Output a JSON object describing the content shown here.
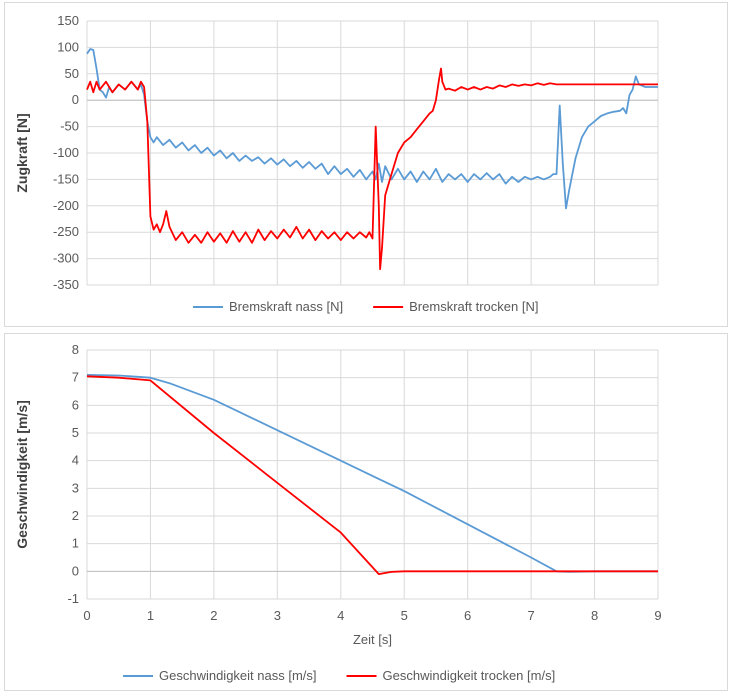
{
  "chart_data": [
    {
      "type": "line",
      "ylabel": "Zugkraft [N]",
      "xlabel": "",
      "xlim": [
        0,
        9
      ],
      "ylim": [
        -350,
        150
      ],
      "yticks": [
        150,
        100,
        50,
        0,
        -50,
        -100,
        -150,
        -200,
        -250,
        -300,
        -350
      ],
      "grid": true,
      "legend_position": "bottom",
      "series": [
        {
          "name": "Bremskraft nass [N]",
          "color": "#5b9bd5",
          "points": [
            [
              0,
              88
            ],
            [
              0.05,
              97
            ],
            [
              0.1,
              95
            ],
            [
              0.15,
              60
            ],
            [
              0.2,
              20
            ],
            [
              0.25,
              15
            ],
            [
              0.3,
              5
            ],
            [
              0.35,
              25
            ],
            [
              0.4,
              15
            ],
            [
              0.5,
              30
            ],
            [
              0.6,
              20
            ],
            [
              0.7,
              35
            ],
            [
              0.8,
              20
            ],
            [
              0.85,
              30
            ],
            [
              0.9,
              10
            ],
            [
              0.95,
              -40
            ],
            [
              1.0,
              -70
            ],
            [
              1.05,
              -80
            ],
            [
              1.1,
              -70
            ],
            [
              1.2,
              -85
            ],
            [
              1.3,
              -75
            ],
            [
              1.4,
              -90
            ],
            [
              1.5,
              -80
            ],
            [
              1.6,
              -95
            ],
            [
              1.7,
              -85
            ],
            [
              1.8,
              -100
            ],
            [
              1.9,
              -90
            ],
            [
              2.0,
              -105
            ],
            [
              2.1,
              -95
            ],
            [
              2.2,
              -110
            ],
            [
              2.3,
              -100
            ],
            [
              2.4,
              -115
            ],
            [
              2.5,
              -105
            ],
            [
              2.6,
              -115
            ],
            [
              2.7,
              -108
            ],
            [
              2.8,
              -120
            ],
            [
              2.9,
              -110
            ],
            [
              3.0,
              -122
            ],
            [
              3.1,
              -112
            ],
            [
              3.2,
              -125
            ],
            [
              3.3,
              -115
            ],
            [
              3.4,
              -128
            ],
            [
              3.5,
              -117
            ],
            [
              3.6,
              -130
            ],
            [
              3.7,
              -120
            ],
            [
              3.8,
              -140
            ],
            [
              3.9,
              -125
            ],
            [
              4.0,
              -140
            ],
            [
              4.1,
              -130
            ],
            [
              4.2,
              -145
            ],
            [
              4.3,
              -132
            ],
            [
              4.4,
              -150
            ],
            [
              4.5,
              -135
            ],
            [
              4.55,
              -150
            ],
            [
              4.6,
              -120
            ],
            [
              4.65,
              -155
            ],
            [
              4.7,
              -125
            ],
            [
              4.8,
              -150
            ],
            [
              4.9,
              -130
            ],
            [
              5.0,
              -150
            ],
            [
              5.1,
              -135
            ],
            [
              5.2,
              -155
            ],
            [
              5.3,
              -135
            ],
            [
              5.4,
              -150
            ],
            [
              5.5,
              -130
            ],
            [
              5.6,
              -155
            ],
            [
              5.7,
              -140
            ],
            [
              5.8,
              -150
            ],
            [
              5.9,
              -140
            ],
            [
              6.0,
              -155
            ],
            [
              6.1,
              -140
            ],
            [
              6.2,
              -150
            ],
            [
              6.3,
              -138
            ],
            [
              6.4,
              -150
            ],
            [
              6.5,
              -140
            ],
            [
              6.6,
              -158
            ],
            [
              6.7,
              -145
            ],
            [
              6.8,
              -155
            ],
            [
              6.9,
              -145
            ],
            [
              7.0,
              -150
            ],
            [
              7.1,
              -145
            ],
            [
              7.2,
              -150
            ],
            [
              7.3,
              -145
            ],
            [
              7.35,
              -140
            ],
            [
              7.4,
              -140
            ],
            [
              7.45,
              -10
            ],
            [
              7.5,
              -120
            ],
            [
              7.55,
              -205
            ],
            [
              7.6,
              -170
            ],
            [
              7.7,
              -110
            ],
            [
              7.8,
              -70
            ],
            [
              7.9,
              -50
            ],
            [
              8.0,
              -40
            ],
            [
              8.1,
              -30
            ],
            [
              8.2,
              -25
            ],
            [
              8.3,
              -22
            ],
            [
              8.4,
              -20
            ],
            [
              8.45,
              -15
            ],
            [
              8.5,
              -25
            ],
            [
              8.55,
              10
            ],
            [
              8.6,
              20
            ],
            [
              8.65,
              45
            ],
            [
              8.7,
              30
            ],
            [
              8.8,
              25
            ],
            [
              9.0,
              25
            ]
          ]
        },
        {
          "name": "Bremskraft trocken [N]",
          "color": "#ff0000",
          "points": [
            [
              0,
              20
            ],
            [
              0.05,
              35
            ],
            [
              0.1,
              15
            ],
            [
              0.15,
              35
            ],
            [
              0.2,
              20
            ],
            [
              0.3,
              35
            ],
            [
              0.4,
              15
            ],
            [
              0.5,
              30
            ],
            [
              0.6,
              20
            ],
            [
              0.7,
              35
            ],
            [
              0.8,
              20
            ],
            [
              0.85,
              35
            ],
            [
              0.9,
              25
            ],
            [
              0.95,
              -40
            ],
            [
              1.0,
              -220
            ],
            [
              1.05,
              -245
            ],
            [
              1.1,
              -235
            ],
            [
              1.15,
              -250
            ],
            [
              1.2,
              -235
            ],
            [
              1.25,
              -210
            ],
            [
              1.3,
              -240
            ],
            [
              1.4,
              -265
            ],
            [
              1.5,
              -250
            ],
            [
              1.6,
              -270
            ],
            [
              1.7,
              -255
            ],
            [
              1.8,
              -270
            ],
            [
              1.9,
              -250
            ],
            [
              2.0,
              -268
            ],
            [
              2.1,
              -252
            ],
            [
              2.2,
              -270
            ],
            [
              2.3,
              -248
            ],
            [
              2.4,
              -268
            ],
            [
              2.5,
              -250
            ],
            [
              2.6,
              -270
            ],
            [
              2.7,
              -245
            ],
            [
              2.8,
              -265
            ],
            [
              2.9,
              -248
            ],
            [
              3.0,
              -262
            ],
            [
              3.1,
              -245
            ],
            [
              3.2,
              -260
            ],
            [
              3.3,
              -240
            ],
            [
              3.4,
              -262
            ],
            [
              3.5,
              -245
            ],
            [
              3.6,
              -265
            ],
            [
              3.7,
              -248
            ],
            [
              3.8,
              -262
            ],
            [
              3.9,
              -250
            ],
            [
              4.0,
              -265
            ],
            [
              4.1,
              -250
            ],
            [
              4.2,
              -262
            ],
            [
              4.3,
              -250
            ],
            [
              4.4,
              -260
            ],
            [
              4.45,
              -250
            ],
            [
              4.5,
              -262
            ],
            [
              4.55,
              -50
            ],
            [
              4.6,
              -200
            ],
            [
              4.62,
              -320
            ],
            [
              4.65,
              -280
            ],
            [
              4.7,
              -180
            ],
            [
              4.8,
              -140
            ],
            [
              4.9,
              -100
            ],
            [
              5.0,
              -80
            ],
            [
              5.1,
              -70
            ],
            [
              5.2,
              -55
            ],
            [
              5.3,
              -40
            ],
            [
              5.4,
              -25
            ],
            [
              5.45,
              -20
            ],
            [
              5.5,
              0
            ],
            [
              5.55,
              40
            ],
            [
              5.58,
              60
            ],
            [
              5.6,
              35
            ],
            [
              5.65,
              20
            ],
            [
              5.7,
              22
            ],
            [
              5.8,
              18
            ],
            [
              5.9,
              25
            ],
            [
              6.0,
              20
            ],
            [
              6.1,
              25
            ],
            [
              6.2,
              20
            ],
            [
              6.3,
              25
            ],
            [
              6.4,
              22
            ],
            [
              6.5,
              28
            ],
            [
              6.6,
              25
            ],
            [
              6.7,
              30
            ],
            [
              6.8,
              27
            ],
            [
              6.9,
              30
            ],
            [
              7.0,
              28
            ],
            [
              7.1,
              32
            ],
            [
              7.2,
              29
            ],
            [
              7.3,
              32
            ],
            [
              7.4,
              30
            ],
            [
              7.5,
              30
            ],
            [
              8.0,
              30
            ],
            [
              9.0,
              30
            ]
          ]
        }
      ]
    },
    {
      "type": "line",
      "ylabel": "Geschwindigkeit [m/s]",
      "xlabel": "Zeit [s]",
      "xlim": [
        0,
        9
      ],
      "ylim": [
        -1,
        8
      ],
      "xticks": [
        0,
        1,
        2,
        3,
        4,
        5,
        6,
        7,
        8,
        9
      ],
      "yticks": [
        8,
        7,
        6,
        5,
        4,
        3,
        2,
        1,
        0,
        -1
      ],
      "grid": true,
      "legend_position": "bottom",
      "series": [
        {
          "name": "Geschwindigkeit nass [m/s]",
          "color": "#5b9bd5",
          "points": [
            [
              0,
              7.1
            ],
            [
              0.5,
              7.08
            ],
            [
              1.0,
              7.0
            ],
            [
              1.3,
              6.8
            ],
            [
              2.0,
              6.2
            ],
            [
              3.0,
              5.1
            ],
            [
              4.0,
              4.0
            ],
            [
              5.0,
              2.9
            ],
            [
              6.0,
              1.7
            ],
            [
              7.0,
              0.5
            ],
            [
              7.4,
              0.0
            ],
            [
              7.6,
              -0.02
            ],
            [
              8.0,
              0.0
            ],
            [
              9.0,
              0.0
            ]
          ]
        },
        {
          "name": "Geschwindigkeit trocken [m/s]",
          "color": "#ff0000",
          "points": [
            [
              0,
              7.05
            ],
            [
              0.5,
              7.0
            ],
            [
              1.0,
              6.9
            ],
            [
              2.0,
              5.0
            ],
            [
              3.0,
              3.2
            ],
            [
              4.0,
              1.4
            ],
            [
              4.6,
              -0.1
            ],
            [
              4.8,
              -0.02
            ],
            [
              5.0,
              0.0
            ],
            [
              9.0,
              0.0
            ]
          ]
        }
      ]
    }
  ]
}
